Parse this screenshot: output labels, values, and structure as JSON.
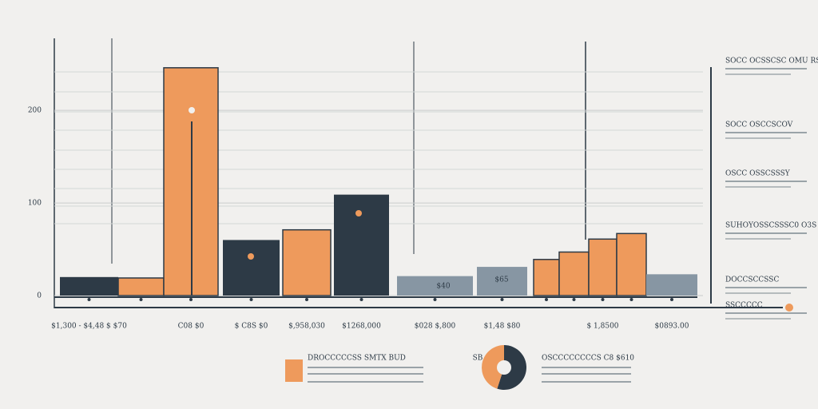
{
  "chart_data": [
    {
      "type": "bar",
      "categories": [
        "$1,300 - $4,48 $ $70",
        null,
        "C08 $0",
        "$ C8S $0",
        "$,958,030",
        "$1268,000",
        "$028 $,800",
        "$1,48 $80",
        null,
        null,
        "$ 1,8500",
        null,
        "$0893.00"
      ],
      "values": [
        20,
        19,
        246,
        60,
        71,
        109,
        21,
        31,
        39,
        47,
        61,
        67,
        23
      ],
      "colors": [
        "#2d3a46",
        "#ee9a5c",
        "#ee9a5c",
        "#2d3a46",
        "#ee9a5c",
        "#2d3a46",
        "#8796a3",
        "#8796a3",
        "#ee9a5c",
        "#ee9a5c",
        "#ee9a5c",
        "#ee9a5c",
        "#8796a3"
      ],
      "ylim": [
        0,
        270
      ],
      "yticks": [
        0,
        100,
        200
      ],
      "grid": true,
      "annotations": [
        "$40",
        "$65"
      ],
      "legend_notes": [
        "SOCC OCSSCSC OMU RS",
        "SOCC OSCCSCOV",
        "OSCC OSSCSSSY",
        "SUHOYOSSCSSSC0 O3S",
        "DOCCSCCSSC",
        "SSCCCCC"
      ]
    },
    {
      "type": "pie",
      "labels": [
        "SB",
        "OSCCCCCCCCS C8 $610"
      ],
      "values": [
        55,
        45
      ],
      "colors": [
        "#2d3a46",
        "#ee9a5c"
      ],
      "legend": [
        {
          "label": "DROCCCCCSS SMTX BUD",
          "color": "#ee9a5c"
        }
      ]
    }
  ]
}
